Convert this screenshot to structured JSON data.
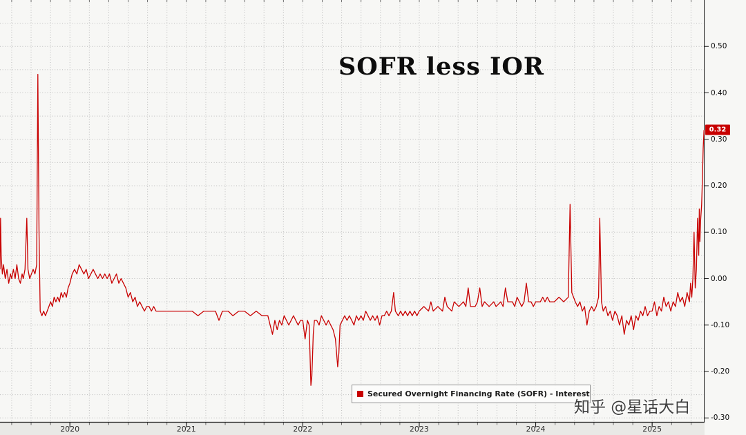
{
  "watermark": {
    "text": "知乎 @星话大白"
  },
  "colors": {
    "background": "#f7f7f5",
    "grid": "#bcbcbc",
    "axis": "#1a1a1a",
    "axis_strip": "#e9e9e6",
    "line": "#c80000",
    "badge_bg": "#c80000",
    "badge_text": "#ffffff"
  },
  "chart_data": {
    "type": "line",
    "title": "SOFR less IOR",
    "xlabel": "",
    "ylabel": "",
    "xlim": [
      2019.4,
      2025.45
    ],
    "ylim": [
      -0.31,
      0.6
    ],
    "x_ticks": [
      2020,
      2021,
      2022,
      2023,
      2024,
      2025
    ],
    "y_ticks": [
      0.5,
      0.4,
      0.3,
      0.2,
      0.1,
      0.0,
      -0.1,
      -0.2,
      -0.3
    ],
    "grid": {
      "x_minor_step": 0.1666667,
      "y_minor_step": 0.05,
      "style": "dotted"
    },
    "legend_position": "bottom-center",
    "last_value": 0.32,
    "last_value_label": "0.32",
    "series": [
      {
        "name": "Secured Overnight Financing Rate (SOFR) - Interest",
        "color": "#c80000",
        "points": [
          [
            2019.4,
            0.02
          ],
          [
            2019.405,
            0.13
          ],
          [
            2019.41,
            0.05
          ],
          [
            2019.42,
            0.01
          ],
          [
            2019.43,
            0.03
          ],
          [
            2019.445,
            0.0
          ],
          [
            2019.46,
            0.02
          ],
          [
            2019.475,
            -0.01
          ],
          [
            2019.49,
            0.01
          ],
          [
            2019.5,
            0.0
          ],
          [
            2019.515,
            0.02
          ],
          [
            2019.53,
            0.0
          ],
          [
            2019.545,
            0.03
          ],
          [
            2019.56,
            0.0
          ],
          [
            2019.575,
            -0.01
          ],
          [
            2019.59,
            0.01
          ],
          [
            2019.6,
            0.0
          ],
          [
            2019.615,
            0.02
          ],
          [
            2019.63,
            0.13
          ],
          [
            2019.64,
            0.02
          ],
          [
            2019.655,
            0.0
          ],
          [
            2019.67,
            0.01
          ],
          [
            2019.685,
            0.02
          ],
          [
            2019.7,
            0.01
          ],
          [
            2019.715,
            0.03
          ],
          [
            2019.725,
            0.44
          ],
          [
            2019.735,
            0.1
          ],
          [
            2019.745,
            -0.07
          ],
          [
            2019.76,
            -0.08
          ],
          [
            2019.775,
            -0.07
          ],
          [
            2019.79,
            -0.08
          ],
          [
            2019.805,
            -0.07
          ],
          [
            2019.82,
            -0.06
          ],
          [
            2019.835,
            -0.05
          ],
          [
            2019.85,
            -0.06
          ],
          [
            2019.865,
            -0.04
          ],
          [
            2019.88,
            -0.05
          ],
          [
            2019.895,
            -0.04
          ],
          [
            2019.91,
            -0.05
          ],
          [
            2019.925,
            -0.03
          ],
          [
            2019.94,
            -0.04
          ],
          [
            2019.955,
            -0.03
          ],
          [
            2019.97,
            -0.04
          ],
          [
            2019.985,
            -0.02
          ],
          [
            2020.0,
            -0.01
          ],
          [
            2020.02,
            0.01
          ],
          [
            2020.04,
            0.02
          ],
          [
            2020.06,
            0.01
          ],
          [
            2020.08,
            0.03
          ],
          [
            2020.1,
            0.02
          ],
          [
            2020.12,
            0.01
          ],
          [
            2020.14,
            0.02
          ],
          [
            2020.16,
            0.0
          ],
          [
            2020.18,
            0.01
          ],
          [
            2020.2,
            0.02
          ],
          [
            2020.22,
            0.01
          ],
          [
            2020.24,
            0.0
          ],
          [
            2020.26,
            0.01
          ],
          [
            2020.28,
            0.0
          ],
          [
            2020.3,
            0.01
          ],
          [
            2020.32,
            0.0
          ],
          [
            2020.34,
            0.01
          ],
          [
            2020.36,
            -0.01
          ],
          [
            2020.38,
            0.0
          ],
          [
            2020.4,
            0.01
          ],
          [
            2020.42,
            -0.01
          ],
          [
            2020.44,
            0.0
          ],
          [
            2020.46,
            -0.01
          ],
          [
            2020.48,
            -0.02
          ],
          [
            2020.5,
            -0.04
          ],
          [
            2020.52,
            -0.03
          ],
          [
            2020.54,
            -0.05
          ],
          [
            2020.56,
            -0.04
          ],
          [
            2020.58,
            -0.06
          ],
          [
            2020.6,
            -0.05
          ],
          [
            2020.62,
            -0.06
          ],
          [
            2020.64,
            -0.07
          ],
          [
            2020.66,
            -0.06
          ],
          [
            2020.68,
            -0.06
          ],
          [
            2020.7,
            -0.07
          ],
          [
            2020.72,
            -0.06
          ],
          [
            2020.74,
            -0.07
          ],
          [
            2020.78,
            -0.07
          ],
          [
            2020.82,
            -0.07
          ],
          [
            2020.86,
            -0.07
          ],
          [
            2020.9,
            -0.07
          ],
          [
            2020.95,
            -0.07
          ],
          [
            2021.0,
            -0.07
          ],
          [
            2021.05,
            -0.07
          ],
          [
            2021.1,
            -0.08
          ],
          [
            2021.15,
            -0.07
          ],
          [
            2021.2,
            -0.07
          ],
          [
            2021.25,
            -0.07
          ],
          [
            2021.28,
            -0.09
          ],
          [
            2021.31,
            -0.07
          ],
          [
            2021.36,
            -0.07
          ],
          [
            2021.4,
            -0.08
          ],
          [
            2021.45,
            -0.07
          ],
          [
            2021.5,
            -0.07
          ],
          [
            2021.55,
            -0.08
          ],
          [
            2021.6,
            -0.07
          ],
          [
            2021.65,
            -0.08
          ],
          [
            2021.7,
            -0.08
          ],
          [
            2021.72,
            -0.1
          ],
          [
            2021.74,
            -0.12
          ],
          [
            2021.76,
            -0.09
          ],
          [
            2021.78,
            -0.11
          ],
          [
            2021.8,
            -0.09
          ],
          [
            2021.82,
            -0.1
          ],
          [
            2021.84,
            -0.08
          ],
          [
            2021.86,
            -0.09
          ],
          [
            2021.88,
            -0.1
          ],
          [
            2021.9,
            -0.09
          ],
          [
            2021.92,
            -0.08
          ],
          [
            2021.94,
            -0.09
          ],
          [
            2021.96,
            -0.1
          ],
          [
            2021.98,
            -0.09
          ],
          [
            2022.0,
            -0.09
          ],
          [
            2022.02,
            -0.13
          ],
          [
            2022.04,
            -0.09
          ],
          [
            2022.055,
            -0.1
          ],
          [
            2022.07,
            -0.23
          ],
          [
            2022.078,
            -0.21
          ],
          [
            2022.09,
            -0.12
          ],
          [
            2022.1,
            -0.09
          ],
          [
            2022.12,
            -0.09
          ],
          [
            2022.14,
            -0.1
          ],
          [
            2022.16,
            -0.08
          ],
          [
            2022.18,
            -0.09
          ],
          [
            2022.2,
            -0.1
          ],
          [
            2022.22,
            -0.09
          ],
          [
            2022.24,
            -0.1
          ],
          [
            2022.26,
            -0.11
          ],
          [
            2022.28,
            -0.13
          ],
          [
            2022.3,
            -0.19
          ],
          [
            2022.31,
            -0.16
          ],
          [
            2022.32,
            -0.1
          ],
          [
            2022.34,
            -0.09
          ],
          [
            2022.36,
            -0.08
          ],
          [
            2022.38,
            -0.09
          ],
          [
            2022.4,
            -0.08
          ],
          [
            2022.42,
            -0.09
          ],
          [
            2022.44,
            -0.1
          ],
          [
            2022.46,
            -0.08
          ],
          [
            2022.48,
            -0.09
          ],
          [
            2022.5,
            -0.08
          ],
          [
            2022.52,
            -0.09
          ],
          [
            2022.54,
            -0.07
          ],
          [
            2022.56,
            -0.08
          ],
          [
            2022.58,
            -0.09
          ],
          [
            2022.6,
            -0.08
          ],
          [
            2022.62,
            -0.09
          ],
          [
            2022.64,
            -0.08
          ],
          [
            2022.66,
            -0.1
          ],
          [
            2022.68,
            -0.08
          ],
          [
            2022.7,
            -0.08
          ],
          [
            2022.72,
            -0.07
          ],
          [
            2022.74,
            -0.08
          ],
          [
            2022.76,
            -0.07
          ],
          [
            2022.78,
            -0.03
          ],
          [
            2022.795,
            -0.07
          ],
          [
            2022.82,
            -0.08
          ],
          [
            2022.84,
            -0.07
          ],
          [
            2022.86,
            -0.08
          ],
          [
            2022.88,
            -0.07
          ],
          [
            2022.9,
            -0.08
          ],
          [
            2022.92,
            -0.07
          ],
          [
            2022.94,
            -0.08
          ],
          [
            2022.96,
            -0.07
          ],
          [
            2022.98,
            -0.08
          ],
          [
            2023.0,
            -0.07
          ],
          [
            2023.04,
            -0.06
          ],
          [
            2023.08,
            -0.07
          ],
          [
            2023.1,
            -0.05
          ],
          [
            2023.12,
            -0.07
          ],
          [
            2023.16,
            -0.06
          ],
          [
            2023.2,
            -0.07
          ],
          [
            2023.22,
            -0.04
          ],
          [
            2023.24,
            -0.06
          ],
          [
            2023.28,
            -0.07
          ],
          [
            2023.3,
            -0.05
          ],
          [
            2023.34,
            -0.06
          ],
          [
            2023.38,
            -0.05
          ],
          [
            2023.4,
            -0.06
          ],
          [
            2023.42,
            -0.02
          ],
          [
            2023.44,
            -0.06
          ],
          [
            2023.48,
            -0.06
          ],
          [
            2023.5,
            -0.05
          ],
          [
            2023.52,
            -0.02
          ],
          [
            2023.54,
            -0.06
          ],
          [
            2023.56,
            -0.05
          ],
          [
            2023.6,
            -0.06
          ],
          [
            2023.64,
            -0.05
          ],
          [
            2023.66,
            -0.06
          ],
          [
            2023.7,
            -0.05
          ],
          [
            2023.72,
            -0.06
          ],
          [
            2023.74,
            -0.02
          ],
          [
            2023.76,
            -0.05
          ],
          [
            2023.8,
            -0.05
          ],
          [
            2023.82,
            -0.06
          ],
          [
            2023.84,
            -0.04
          ],
          [
            2023.86,
            -0.05
          ],
          [
            2023.88,
            -0.06
          ],
          [
            2023.9,
            -0.05
          ],
          [
            2023.92,
            -0.01
          ],
          [
            2023.94,
            -0.05
          ],
          [
            2023.96,
            -0.05
          ],
          [
            2023.98,
            -0.06
          ],
          [
            2024.0,
            -0.05
          ],
          [
            2024.04,
            -0.05
          ],
          [
            2024.06,
            -0.04
          ],
          [
            2024.08,
            -0.05
          ],
          [
            2024.1,
            -0.04
          ],
          [
            2024.12,
            -0.05
          ],
          [
            2024.16,
            -0.05
          ],
          [
            2024.2,
            -0.04
          ],
          [
            2024.24,
            -0.05
          ],
          [
            2024.28,
            -0.04
          ],
          [
            2024.295,
            0.16
          ],
          [
            2024.31,
            -0.03
          ],
          [
            2024.34,
            -0.05
          ],
          [
            2024.36,
            -0.06
          ],
          [
            2024.38,
            -0.05
          ],
          [
            2024.4,
            -0.07
          ],
          [
            2024.42,
            -0.06
          ],
          [
            2024.44,
            -0.1
          ],
          [
            2024.46,
            -0.07
          ],
          [
            2024.48,
            -0.06
          ],
          [
            2024.5,
            -0.07
          ],
          [
            2024.52,
            -0.06
          ],
          [
            2024.54,
            -0.04
          ],
          [
            2024.55,
            0.13
          ],
          [
            2024.565,
            -0.05
          ],
          [
            2024.58,
            -0.07
          ],
          [
            2024.6,
            -0.06
          ],
          [
            2024.62,
            -0.08
          ],
          [
            2024.64,
            -0.07
          ],
          [
            2024.66,
            -0.09
          ],
          [
            2024.68,
            -0.07
          ],
          [
            2024.7,
            -0.08
          ],
          [
            2024.72,
            -0.1
          ],
          [
            2024.74,
            -0.08
          ],
          [
            2024.76,
            -0.12
          ],
          [
            2024.78,
            -0.09
          ],
          [
            2024.8,
            -0.1
          ],
          [
            2024.82,
            -0.08
          ],
          [
            2024.84,
            -0.11
          ],
          [
            2024.86,
            -0.08
          ],
          [
            2024.88,
            -0.09
          ],
          [
            2024.9,
            -0.07
          ],
          [
            2024.92,
            -0.08
          ],
          [
            2024.94,
            -0.06
          ],
          [
            2024.96,
            -0.08
          ],
          [
            2024.98,
            -0.07
          ],
          [
            2025.0,
            -0.07
          ],
          [
            2025.02,
            -0.05
          ],
          [
            2025.04,
            -0.08
          ],
          [
            2025.06,
            -0.06
          ],
          [
            2025.08,
            -0.07
          ],
          [
            2025.1,
            -0.04
          ],
          [
            2025.12,
            -0.06
          ],
          [
            2025.14,
            -0.05
          ],
          [
            2025.16,
            -0.07
          ],
          [
            2025.18,
            -0.05
          ],
          [
            2025.2,
            -0.06
          ],
          [
            2025.22,
            -0.03
          ],
          [
            2025.24,
            -0.05
          ],
          [
            2025.26,
            -0.04
          ],
          [
            2025.28,
            -0.06
          ],
          [
            2025.3,
            -0.03
          ],
          [
            2025.32,
            -0.05
          ],
          [
            2025.33,
            -0.01
          ],
          [
            2025.34,
            -0.04
          ],
          [
            2025.35,
            0.0
          ],
          [
            2025.36,
            0.1
          ],
          [
            2025.37,
            -0.02
          ],
          [
            2025.38,
            0.02
          ],
          [
            2025.39,
            0.13
          ],
          [
            2025.4,
            0.05
          ],
          [
            2025.405,
            0.15
          ],
          [
            2025.41,
            0.08
          ],
          [
            2025.415,
            0.12
          ],
          [
            2025.425,
            0.16
          ],
          [
            2025.43,
            0.2
          ],
          [
            2025.438,
            0.28
          ],
          [
            2025.445,
            0.32
          ]
        ]
      }
    ]
  }
}
